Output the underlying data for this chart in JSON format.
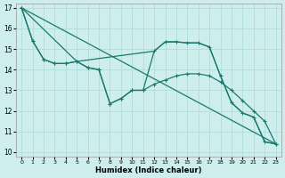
{
  "xlabel": "Humidex (Indice chaleur)",
  "bg_color": "#cdeeed",
  "grid_color": "#b0ddd9",
  "line_color": "#1a7a6e",
  "xlim": [
    -0.5,
    23.5
  ],
  "ylim": [
    9.8,
    17.2
  ],
  "xticks": [
    0,
    1,
    2,
    3,
    4,
    5,
    6,
    7,
    8,
    9,
    10,
    11,
    12,
    13,
    14,
    15,
    16,
    17,
    18,
    19,
    20,
    21,
    22,
    23
  ],
  "yticks": [
    10,
    11,
    12,
    13,
    14,
    15,
    16,
    17
  ],
  "series": [
    {
      "x": [
        0,
        1,
        2,
        3,
        4,
        5,
        6,
        7,
        8,
        9,
        10,
        11,
        12,
        13,
        14,
        15,
        16,
        17,
        18,
        19,
        20,
        21,
        22,
        23
      ],
      "y": [
        17.0,
        15.4,
        14.5,
        14.3,
        14.3,
        14.4,
        14.1,
        14.0,
        12.35,
        12.6,
        13.0,
        13.0,
        14.9,
        15.35,
        15.35,
        15.3,
        15.3,
        15.1,
        13.7,
        12.4,
        11.9,
        11.7,
        10.5,
        10.4
      ],
      "marker": true,
      "lw": 0.9
    },
    {
      "x": [
        0,
        1,
        2,
        3,
        4,
        5,
        6,
        7,
        8,
        9,
        10,
        11,
        12,
        13,
        14,
        15,
        16,
        17,
        18,
        19,
        20,
        21,
        22,
        23
      ],
      "y": [
        17.0,
        15.4,
        14.5,
        14.3,
        14.3,
        14.4,
        14.1,
        14.0,
        12.35,
        12.6,
        13.0,
        13.0,
        13.3,
        13.5,
        13.7,
        13.8,
        13.8,
        13.7,
        13.4,
        13.0,
        12.5,
        12.0,
        11.5,
        10.4
      ],
      "marker": true,
      "lw": 0.9
    },
    {
      "x": [
        0,
        23
      ],
      "y": [
        17.0,
        10.4
      ],
      "marker": false,
      "lw": 0.9
    },
    {
      "x": [
        0,
        5,
        12,
        13,
        14,
        15,
        16,
        17,
        18,
        19,
        20,
        21,
        22,
        23
      ],
      "y": [
        17.0,
        14.4,
        14.9,
        15.35,
        15.35,
        15.3,
        15.3,
        15.1,
        13.7,
        12.4,
        11.9,
        11.7,
        10.5,
        10.4
      ],
      "marker": false,
      "lw": 0.9
    }
  ]
}
